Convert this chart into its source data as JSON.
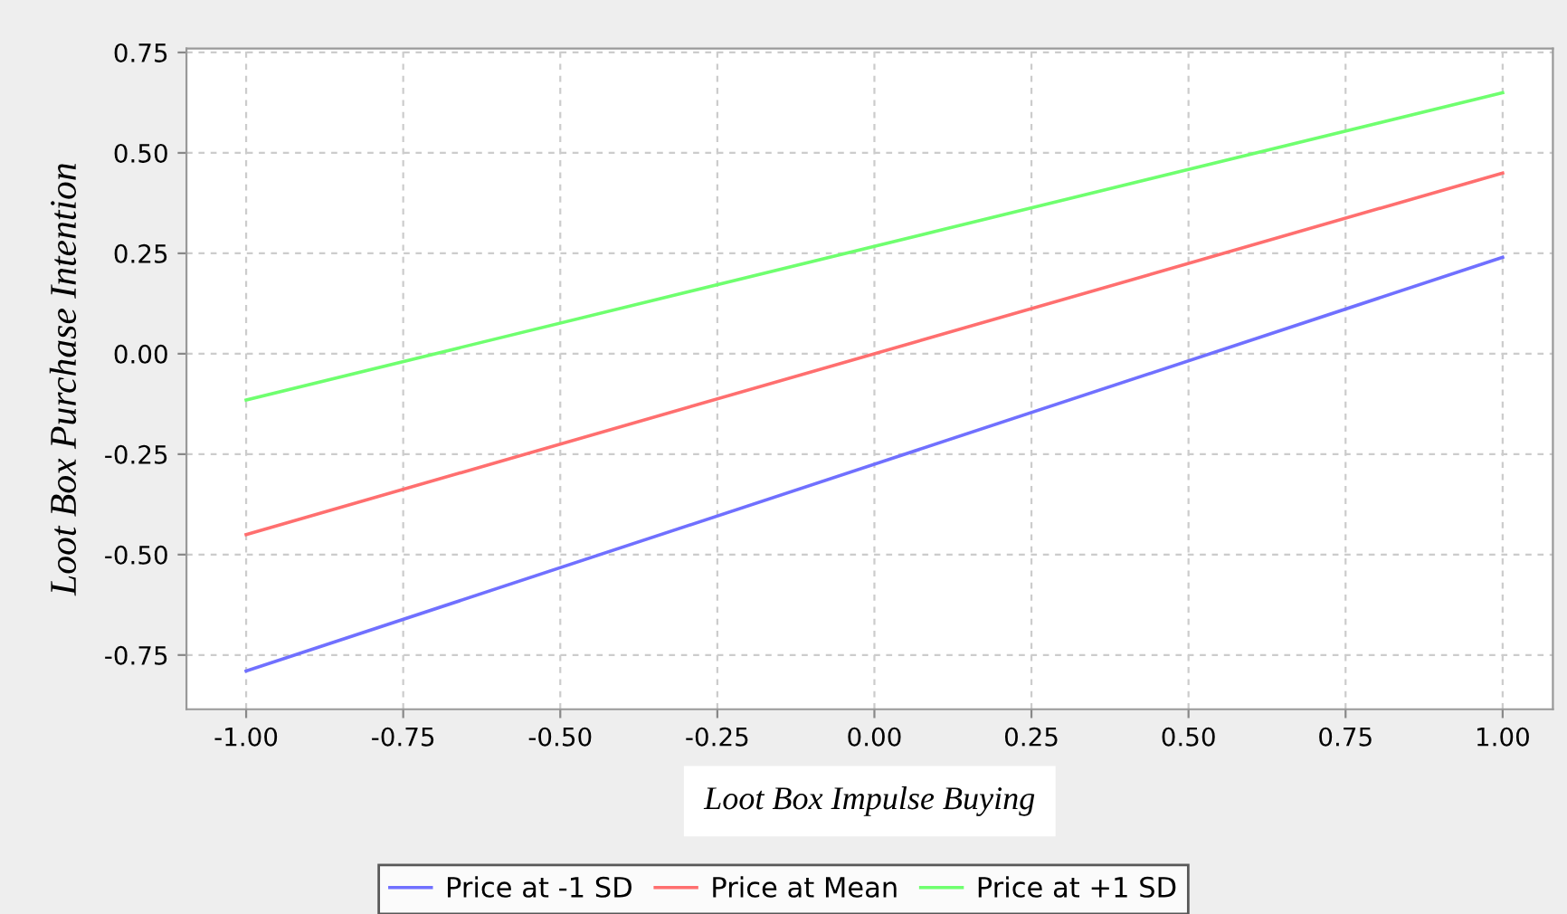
{
  "chart_data": {
    "type": "line",
    "xlabel": "Loot Box Impulse Buying",
    "ylabel": "Loot Box Purchase Intention",
    "x": [
      -1.0,
      1.0
    ],
    "series": [
      {
        "name": "Price at -1 SD",
        "color": "#7070ff",
        "values": [
          -0.79,
          0.24
        ]
      },
      {
        "name": "Price at Mean",
        "color": "#ff6f6f",
        "values": [
          -0.45,
          0.45
        ]
      },
      {
        "name": "Price at +1 SD",
        "color": "#6fff6f",
        "values": [
          -0.115,
          0.65
        ]
      }
    ],
    "xlim": [
      -1.095,
      1.08
    ],
    "ylim": [
      -0.885,
      0.76
    ],
    "xticks": [
      {
        "value": -1.0,
        "label": "-1.00"
      },
      {
        "value": -0.75,
        "label": "-0.75"
      },
      {
        "value": -0.5,
        "label": "-0.50"
      },
      {
        "value": -0.25,
        "label": "-0.25"
      },
      {
        "value": 0.0,
        "label": "0.00"
      },
      {
        "value": 0.25,
        "label": "0.25"
      },
      {
        "value": 0.5,
        "label": "0.50"
      },
      {
        "value": 0.75,
        "label": "0.75"
      },
      {
        "value": 1.0,
        "label": "1.00"
      }
    ],
    "yticks": [
      {
        "value": -0.75,
        "label": "-0.75"
      },
      {
        "value": -0.5,
        "label": "-0.50"
      },
      {
        "value": -0.25,
        "label": "-0.25"
      },
      {
        "value": 0.0,
        "label": "0.00"
      },
      {
        "value": 0.25,
        "label": "0.25"
      },
      {
        "value": 0.5,
        "label": "0.50"
      },
      {
        "value": 0.75,
        "label": "0.75"
      }
    ],
    "grid": true,
    "legend": "bottom",
    "line_style": "solid",
    "marker": "none"
  }
}
